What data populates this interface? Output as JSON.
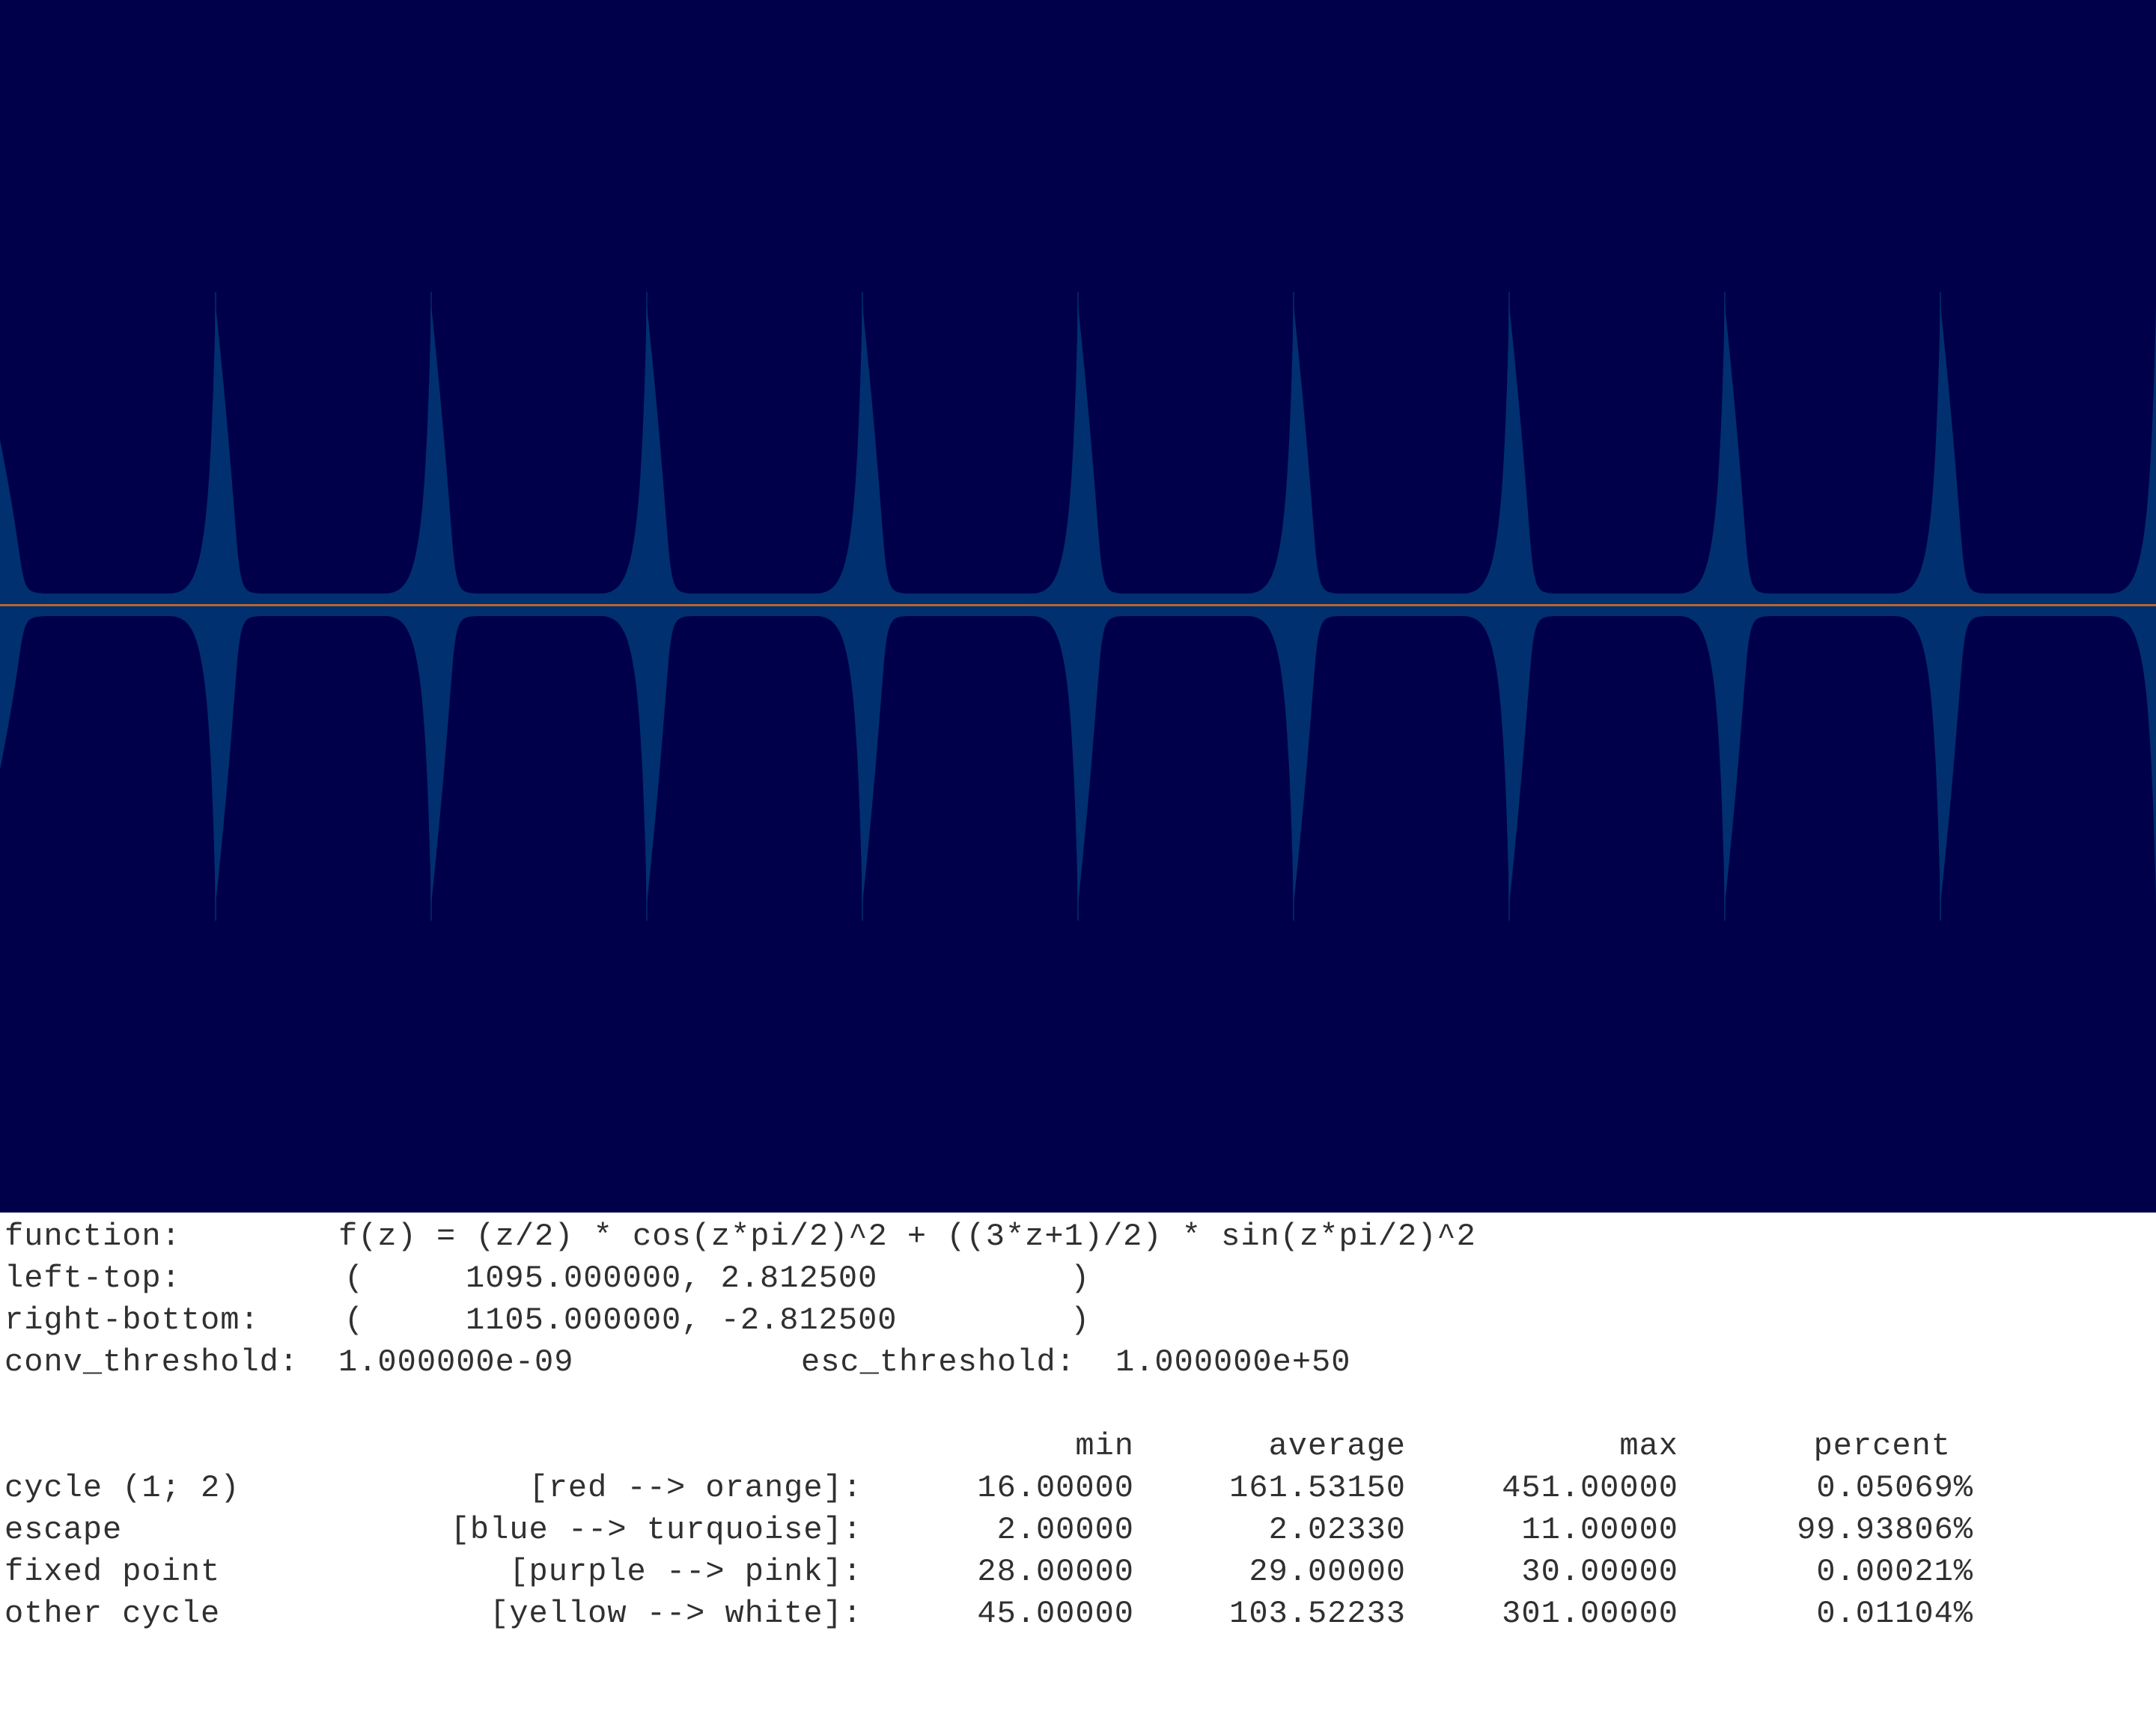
{
  "render": {
    "background_color": "#00004a",
    "basin_color": "#003070",
    "cycle_line_color": "#b8642a",
    "columns": 10
  },
  "info": {
    "function_label": "function:",
    "function_value": "f(z) = (z/2) * cos(z*pi/2)^2 + ((3*z+1)/2) * sin(z*pi/2)^2",
    "left_top_label": "left-top:",
    "left_top_open": "(",
    "left_top_value": "1095.000000, 2.812500",
    "left_top_close": ")",
    "right_bottom_label": "right-bottom:",
    "right_bottom_open": "(",
    "right_bottom_value": "1105.000000, -2.812500",
    "right_bottom_close": ")",
    "conv_threshold_label": "conv_threshold:",
    "conv_threshold_value": "1.000000e-09",
    "esc_threshold_label": "esc_threshold:",
    "esc_threshold_value": "1.000000e+50"
  },
  "stats": {
    "headers": [
      "min",
      "average",
      "max",
      "percent"
    ],
    "rows": [
      {
        "name": "cycle (1; 2)",
        "colors": "[red --> orange]:",
        "min": "16.00000",
        "average": "161.53150",
        "max": "451.00000",
        "percent": "0.05069%"
      },
      {
        "name": "escape",
        "colors": "[blue --> turquoise]:",
        "min": "2.00000",
        "average": "2.02330",
        "max": "11.00000",
        "percent": "99.93806%"
      },
      {
        "name": "fixed point",
        "colors": "[purple --> pink]:",
        "min": "28.00000",
        "average": "29.00000",
        "max": "30.00000",
        "percent": "0.00021%"
      },
      {
        "name": "other cycle",
        "colors": "[yellow --> white]:",
        "min": "45.00000",
        "average": "103.52233",
        "max": "301.00000",
        "percent": "0.01104%"
      }
    ]
  }
}
